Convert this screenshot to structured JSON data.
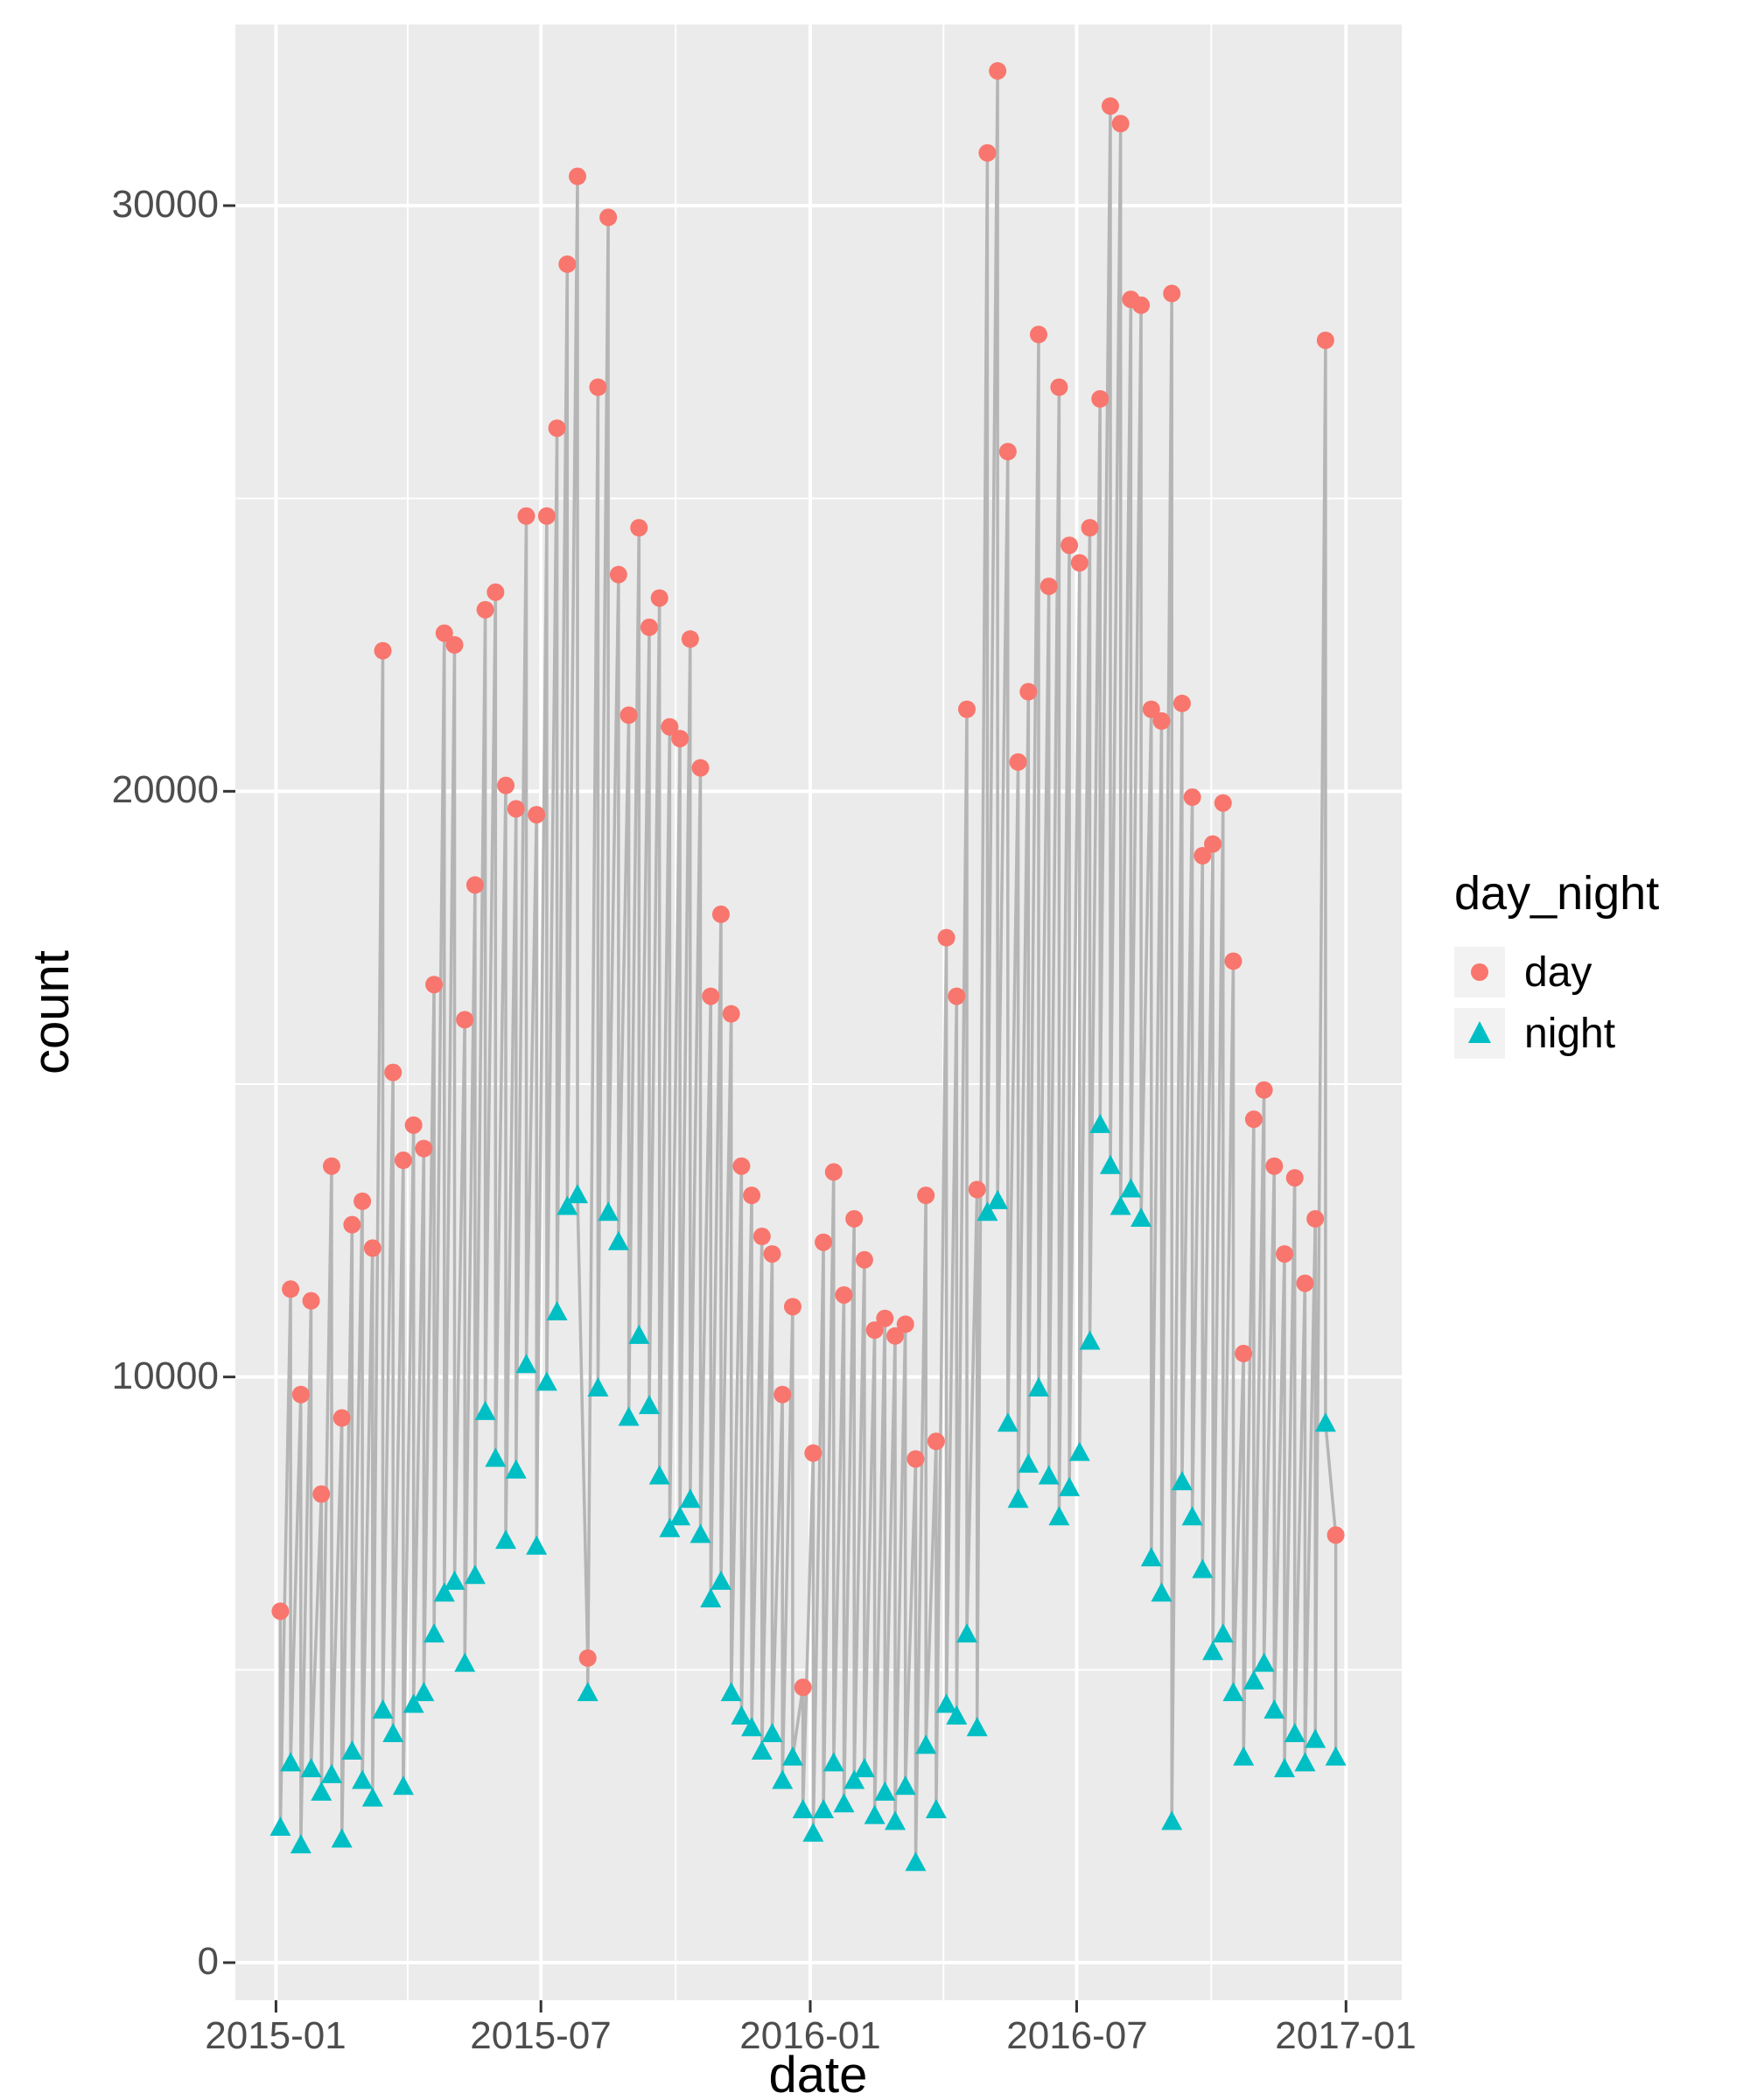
{
  "figure": {
    "y_axis_title": "count",
    "x_axis_title": "date"
  },
  "legend": {
    "title": "day_night",
    "entries": [
      {
        "label": "day",
        "shape": "circle"
      },
      {
        "label": "night",
        "shape": "triangle"
      }
    ]
  },
  "chart_data": {
    "type": "line",
    "title": "",
    "xlabel": "date",
    "ylabel": "count",
    "x_ticks": [
      "2015-01",
      "2015-07",
      "2016-01",
      "2016-07",
      "2017-01"
    ],
    "x_tick_dates": [
      "2015-01-01",
      "2015-07-01",
      "2016-01-01",
      "2016-07-01",
      "2017-01-01"
    ],
    "x_minor_dates": [
      "2015-04-01",
      "2015-10-01",
      "2016-04-01",
      "2016-10-01"
    ],
    "y_ticks": [
      "0",
      "10000",
      "20000",
      "30000"
    ],
    "y_tick_values": [
      0,
      10000,
      20000,
      30000
    ],
    "y_minor_values": [
      5000,
      15000,
      25000
    ],
    "ylim": [
      0,
      33000
    ],
    "grid": true,
    "legend_position": "right",
    "colors": {
      "panel_bg": "#EBEBEB",
      "legend_key_bg": "#F2F2F2",
      "grid": "#FFFFFF",
      "line": "#B5B5B5",
      "day": "#F8766D",
      "night": "#00BFC4",
      "tick_label": "#4D4D4D",
      "axis_title": "#000000"
    },
    "dates": [
      "2015-01-04",
      "2015-01-11",
      "2015-01-18",
      "2015-01-25",
      "2015-02-01",
      "2015-02-08",
      "2015-02-15",
      "2015-02-22",
      "2015-03-01",
      "2015-03-08",
      "2015-03-15",
      "2015-03-22",
      "2015-03-29",
      "2015-04-05",
      "2015-04-12",
      "2015-04-19",
      "2015-04-26",
      "2015-05-03",
      "2015-05-10",
      "2015-05-17",
      "2015-05-24",
      "2015-05-31",
      "2015-06-07",
      "2015-06-14",
      "2015-06-21",
      "2015-06-28",
      "2015-07-05",
      "2015-07-12",
      "2015-07-19",
      "2015-07-26",
      "2015-08-02",
      "2015-08-09",
      "2015-08-16",
      "2015-08-23",
      "2015-08-30",
      "2015-09-06",
      "2015-09-13",
      "2015-09-20",
      "2015-09-27",
      "2015-10-04",
      "2015-10-11",
      "2015-10-18",
      "2015-10-25",
      "2015-11-01",
      "2015-11-08",
      "2015-11-15",
      "2015-11-22",
      "2015-11-29",
      "2015-12-06",
      "2015-12-13",
      "2015-12-20",
      "2015-12-27",
      "2016-01-03",
      "2016-01-10",
      "2016-01-17",
      "2016-01-24",
      "2016-01-31",
      "2016-02-07",
      "2016-02-14",
      "2016-02-21",
      "2016-02-28",
      "2016-03-06",
      "2016-03-13",
      "2016-03-20",
      "2016-03-27",
      "2016-04-03",
      "2016-04-10",
      "2016-04-17",
      "2016-04-24",
      "2016-05-01",
      "2016-05-08",
      "2016-05-15",
      "2016-05-22",
      "2016-05-29",
      "2016-06-05",
      "2016-06-12",
      "2016-06-19",
      "2016-06-26",
      "2016-07-03",
      "2016-07-10",
      "2016-07-17",
      "2016-07-24",
      "2016-07-31",
      "2016-08-07",
      "2016-08-14",
      "2016-08-21",
      "2016-08-28",
      "2016-09-04",
      "2016-09-11",
      "2016-09-18",
      "2016-09-25",
      "2016-10-02",
      "2016-10-09",
      "2016-10-16",
      "2016-10-23",
      "2016-10-30",
      "2016-11-06",
      "2016-11-13",
      "2016-11-20",
      "2016-11-27",
      "2016-12-04",
      "2016-12-11",
      "2016-12-18",
      "2016-12-25"
    ],
    "series": [
      {
        "name": "day",
        "shape": "circle",
        "color": "#F8766D",
        "values": [
          6000,
          11500,
          9700,
          11300,
          8000,
          13600,
          9300,
          12600,
          13000,
          12200,
          22400,
          15200,
          13700,
          14300,
          13900,
          16700,
          22700,
          22500,
          16100,
          18400,
          23100,
          23400,
          20100,
          19700,
          24700,
          19600,
          24700,
          26200,
          29000,
          30500,
          5200,
          26900,
          29800,
          23700,
          21300,
          24500,
          22800,
          23300,
          21100,
          20900,
          22600,
          20400,
          16500,
          17900,
          16200,
          13600,
          13100,
          12400,
          12100,
          9700,
          11200,
          4700,
          8700,
          12300,
          13500,
          11400,
          12700,
          12000,
          10800,
          11000,
          10700,
          10900,
          8600,
          13100,
          8900,
          17500,
          16500,
          21400,
          13200,
          30900,
          32300,
          25800,
          20500,
          21700,
          27800,
          23500,
          26900,
          24200,
          23900,
          24500,
          26700,
          31700,
          31400,
          28400,
          28300,
          21400,
          21200,
          28500,
          21500,
          19900,
          18900,
          19100,
          19800,
          17100,
          10400,
          14400,
          14900,
          13600,
          12100,
          13400,
          11600,
          12700,
          27700,
          7300
        ]
      },
      {
        "name": "night",
        "shape": "triangle",
        "color": "#00BFC4",
        "values": [
          2300,
          3400,
          2000,
          3300,
          2900,
          3200,
          2100,
          3600,
          3100,
          2800,
          4300,
          3900,
          3000,
          4400,
          4600,
          5600,
          6300,
          6500,
          5100,
          6600,
          9400,
          8600,
          7200,
          8400,
          10200,
          7100,
          9900,
          11100,
          12900,
          13100,
          4600,
          9800,
          12800,
          12300,
          9300,
          10700,
          9500,
          8300,
          7400,
          7600,
          7900,
          7300,
          6200,
          6500,
          4600,
          4200,
          4000,
          3600,
          3900,
          3100,
          3500,
          2600,
          2200,
          2600,
          3400,
          2700,
          3100,
          3300,
          2500,
          2900,
          2400,
          3000,
          1700,
          3700,
          2600,
          4400,
          4200,
          5600,
          4000,
          12800,
          13000,
          9200,
          7900,
          8500,
          9800,
          8300,
          7600,
          8100,
          8700,
          10600,
          14300,
          13600,
          12900,
          13200,
          12700,
          6900,
          6300,
          2400,
          8200,
          7600,
          6700,
          5300,
          5600,
          4600,
          3500,
          4800,
          5100,
          4300,
          3300,
          3900,
          3400,
          3800,
          9200,
          3500
        ]
      }
    ]
  }
}
